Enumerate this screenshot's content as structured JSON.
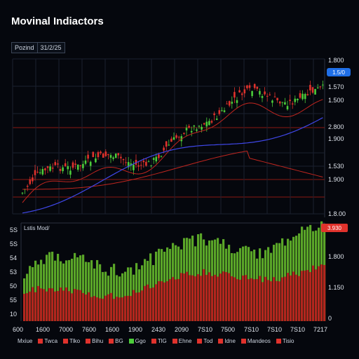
{
  "title": "Movinal Indiactors",
  "tabs": [
    "Pozind",
    "31/2/25"
  ],
  "top_panel": {
    "y_ticks": [
      "1.800",
      "1.570",
      "1.500",
      "2.800",
      "1.900",
      "1.530",
      "1.900",
      "1.8.00"
    ],
    "price_badge": "1.5/0",
    "colors": {
      "bull": "#4ccc3a",
      "bear": "#e0322c",
      "ma_red": "#c0261f",
      "ma_blue": "#3f47e8",
      "grid": "#8a1a14",
      "badge": "#1f6fe8"
    }
  },
  "bottom_panel": {
    "label": "Lstis Mod/",
    "left_ticks": [
      "5S",
      "5S",
      "54",
      "53",
      "50",
      "55",
      "10"
    ],
    "right_ticks": [
      "3.930",
      "1.800",
      "1.150",
      "0"
    ],
    "badge": "3.930",
    "colors": {
      "green": "#5aa628",
      "red": "#b3261e",
      "badge": "#e0322c"
    }
  },
  "x_ticks": [
    "600",
    "1600",
    "7000",
    "7600",
    "1600",
    "1900",
    "2430",
    "2090",
    "7S10",
    "7500",
    "7S10",
    "7S10",
    "7S10",
    "7217"
  ],
  "legend": [
    {
      "label": "Mxiue",
      "color": "#ffffff00"
    },
    {
      "label": "Twca",
      "color": "#e0322c"
    },
    {
      "label": "Tlko",
      "color": "#e0322c"
    },
    {
      "label": "Bihu",
      "color": "#e0322c"
    },
    {
      "label": "BG",
      "color": "#e0322c"
    },
    {
      "label": "Ggo",
      "color": "#4ccc3a"
    },
    {
      "label": "TlG",
      "color": "#e0322c"
    },
    {
      "label": "Ehne",
      "color": "#e0322c"
    },
    {
      "label": "Tod",
      "color": "#e0322c"
    },
    {
      "label": "Idne",
      "color": "#e0322c"
    },
    {
      "label": "Mandeos",
      "color": "#e0322c"
    },
    {
      "label": "Tisio",
      "color": "#e0322c"
    }
  ]
}
